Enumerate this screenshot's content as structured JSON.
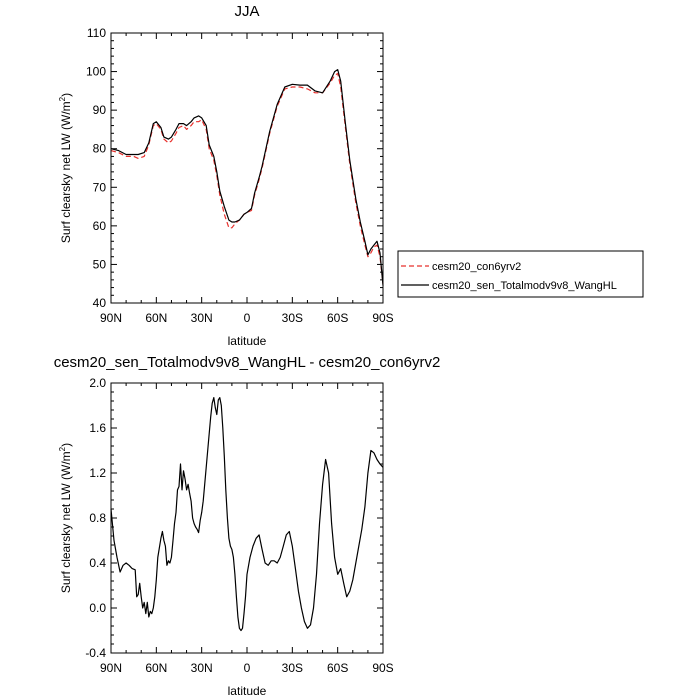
{
  "chart_data": [
    {
      "type": "line",
      "title": "JJA",
      "xlabel": "latitude",
      "ylabel": "Surf clearsky net LW (W/m2)",
      "ylabel_main": "Surf clearsky net LW (W/m",
      "ylabel_sup": "2",
      "ylabel_close": ")",
      "xlim": [
        90,
        -90
      ],
      "ylim": [
        40,
        110
      ],
      "xticks": [
        90,
        60,
        30,
        0,
        -30,
        -60,
        -90
      ],
      "xtick_labels": [
        "90N",
        "60N",
        "30N",
        "0",
        "30S",
        "60S",
        "90S"
      ],
      "yticks": [
        40,
        50,
        60,
        70,
        80,
        90,
        100,
        110
      ],
      "ytick_labels": [
        "40",
        "50",
        "60",
        "70",
        "80",
        "90",
        "100",
        "110"
      ],
      "legend_position": "right, outside the plot",
      "series": [
        {
          "name": "cesm20_con6yrv2",
          "color": "#e8302c",
          "style": "dashed",
          "x": [
            90,
            85,
            80,
            75,
            72,
            68,
            65,
            62,
            60,
            57,
            55,
            52,
            50,
            47,
            45,
            42,
            40,
            37,
            35,
            32,
            30,
            27,
            25,
            22,
            20,
            18,
            15,
            12,
            10,
            8,
            5,
            2,
            0,
            -3,
            -5,
            -8,
            -10,
            -15,
            -20,
            -25,
            -30,
            -35,
            -40,
            -45,
            -50,
            -55,
            -58,
            -60,
            -62,
            -65,
            -68,
            -70,
            -72,
            -75,
            -78,
            -80,
            -82,
            -84,
            -86,
            -88,
            -90
          ],
          "y": [
            79.5,
            79,
            78,
            78,
            77.5,
            78,
            81,
            86,
            86.5,
            85,
            82.5,
            81.5,
            82,
            84,
            85.5,
            86,
            85,
            86,
            87,
            87,
            87.5,
            85,
            80,
            77,
            73,
            68,
            63,
            59.5,
            59.5,
            60.5,
            61.5,
            63,
            63.5,
            64,
            68,
            72,
            75,
            84,
            91,
            95.5,
            96,
            96,
            95.5,
            94.5,
            94.5,
            97,
            99,
            99.5,
            96,
            86,
            76,
            71,
            66,
            60,
            55,
            52,
            53,
            54.5,
            55,
            52,
            45
          ]
        },
        {
          "name": "cesm20_sen_Totalmodv9v8_WangHL",
          "color": "#000000",
          "style": "solid",
          "x": [
            90,
            85,
            80,
            75,
            72,
            68,
            65,
            62,
            60,
            57,
            55,
            52,
            50,
            47,
            45,
            42,
            40,
            37,
            35,
            32,
            30,
            27,
            25,
            22,
            20,
            18,
            15,
            12,
            10,
            8,
            5,
            2,
            0,
            -3,
            -5,
            -8,
            -10,
            -15,
            -20,
            -25,
            -30,
            -35,
            -40,
            -45,
            -50,
            -55,
            -58,
            -60,
            -62,
            -65,
            -68,
            -70,
            -72,
            -75,
            -78,
            -80,
            -82,
            -84,
            -86,
            -88,
            -90
          ],
          "y": [
            80,
            79.5,
            78.5,
            78.5,
            78.5,
            79,
            81.5,
            86.5,
            87,
            85.5,
            83,
            82.5,
            83,
            85,
            86.5,
            86.5,
            86,
            87,
            88,
            88.5,
            88,
            86,
            81,
            78,
            74,
            69,
            65,
            61.5,
            61,
            61,
            61.5,
            63,
            63.5,
            64.5,
            68.5,
            72.5,
            75.5,
            84.5,
            91.5,
            96,
            96.7,
            96.5,
            96.5,
            95,
            94.5,
            97.5,
            100,
            100.5,
            97.5,
            87,
            77,
            72,
            67,
            61,
            56,
            52.5,
            54,
            55,
            56,
            53,
            44.5
          ]
        }
      ]
    },
    {
      "type": "line",
      "title": "cesm20_sen_Totalmodv9v8_WangHL - cesm20_con6yrv2",
      "xlabel": "latitude",
      "ylabel": "Surf clearsky net LW (W/m2)",
      "ylabel_main": "Surf clearsky net LW (W/m",
      "ylabel_sup": "2",
      "ylabel_close": ")",
      "xlim": [
        90,
        -90
      ],
      "ylim": [
        -0.4,
        2.0
      ],
      "xticks": [
        90,
        60,
        30,
        0,
        -30,
        -60,
        -90
      ],
      "xtick_labels": [
        "90N",
        "60N",
        "30N",
        "0",
        "30S",
        "60S",
        "90S"
      ],
      "yticks": [
        -0.4,
        0.0,
        0.4,
        0.8,
        1.2,
        1.6,
        2.0
      ],
      "ytick_labels": [
        "-0.4",
        "0.0",
        "0.4",
        "0.8",
        "1.2",
        "1.6",
        "2.0"
      ],
      "series": [
        {
          "color": "#000000",
          "style": "solid",
          "x": [
            90,
            88,
            86,
            84,
            82,
            80,
            78,
            76,
            74,
            73,
            72,
            71,
            70,
            69,
            68,
            67,
            66,
            65,
            64,
            63,
            62,
            61,
            60,
            59,
            57,
            56,
            55,
            54,
            53,
            52,
            51,
            50,
            49,
            48,
            47,
            46,
            45,
            44,
            43,
            42,
            41,
            40,
            39,
            38,
            37,
            36,
            35,
            34,
            33,
            32,
            31,
            30,
            29,
            28,
            27,
            26,
            25,
            24,
            23,
            22,
            21,
            20,
            19,
            18,
            17,
            16,
            15,
            14,
            13,
            12,
            11,
            10,
            9,
            8,
            7,
            6,
            5,
            4,
            3,
            2,
            1,
            0,
            -2,
            -4,
            -6,
            -8,
            -10,
            -12,
            -14,
            -16,
            -18,
            -20,
            -22,
            -24,
            -26,
            -28,
            -30,
            -32,
            -34,
            -36,
            -38,
            -40,
            -42,
            -44,
            -46,
            -48,
            -50,
            -52,
            -54,
            -56,
            -58,
            -60,
            -62,
            -64,
            -66,
            -68,
            -70,
            -72,
            -74,
            -76,
            -78,
            -80,
            -82,
            -84,
            -86,
            -88,
            -90
          ],
          "y": [
            0.88,
            0.6,
            0.45,
            0.32,
            0.38,
            0.4,
            0.38,
            0.35,
            0.34,
            0.1,
            0.12,
            0.22,
            0.1,
            0.0,
            0.05,
            -0.05,
            0.05,
            -0.08,
            -0.03,
            -0.05,
            0.0,
            0.1,
            0.25,
            0.45,
            0.62,
            0.68,
            0.6,
            0.55,
            0.38,
            0.42,
            0.4,
            0.45,
            0.6,
            0.75,
            0.85,
            1.05,
            1.08,
            1.28,
            1.05,
            1.22,
            1.15,
            1.05,
            1.1,
            1.02,
            0.95,
            0.8,
            0.75,
            0.72,
            0.7,
            0.67,
            0.78,
            0.85,
            0.95,
            1.1,
            1.25,
            1.4,
            1.55,
            1.7,
            1.82,
            1.87,
            1.78,
            1.72,
            1.85,
            1.87,
            1.8,
            1.6,
            1.35,
            1.05,
            0.8,
            0.62,
            0.55,
            0.52,
            0.45,
            0.3,
            0.1,
            -0.08,
            -0.18,
            -0.2,
            -0.18,
            -0.05,
            0.1,
            0.3,
            0.45,
            0.55,
            0.62,
            0.65,
            0.52,
            0.4,
            0.38,
            0.42,
            0.42,
            0.4,
            0.45,
            0.55,
            0.65,
            0.68,
            0.55,
            0.35,
            0.15,
            0.0,
            -0.12,
            -0.18,
            -0.15,
            0.0,
            0.3,
            0.75,
            1.1,
            1.32,
            1.2,
            0.75,
            0.45,
            0.3,
            0.35,
            0.22,
            0.1,
            0.15,
            0.25,
            0.4,
            0.55,
            0.7,
            0.9,
            1.2,
            1.4,
            1.38,
            1.32,
            1.28,
            1.25
          ]
        }
      ]
    }
  ]
}
